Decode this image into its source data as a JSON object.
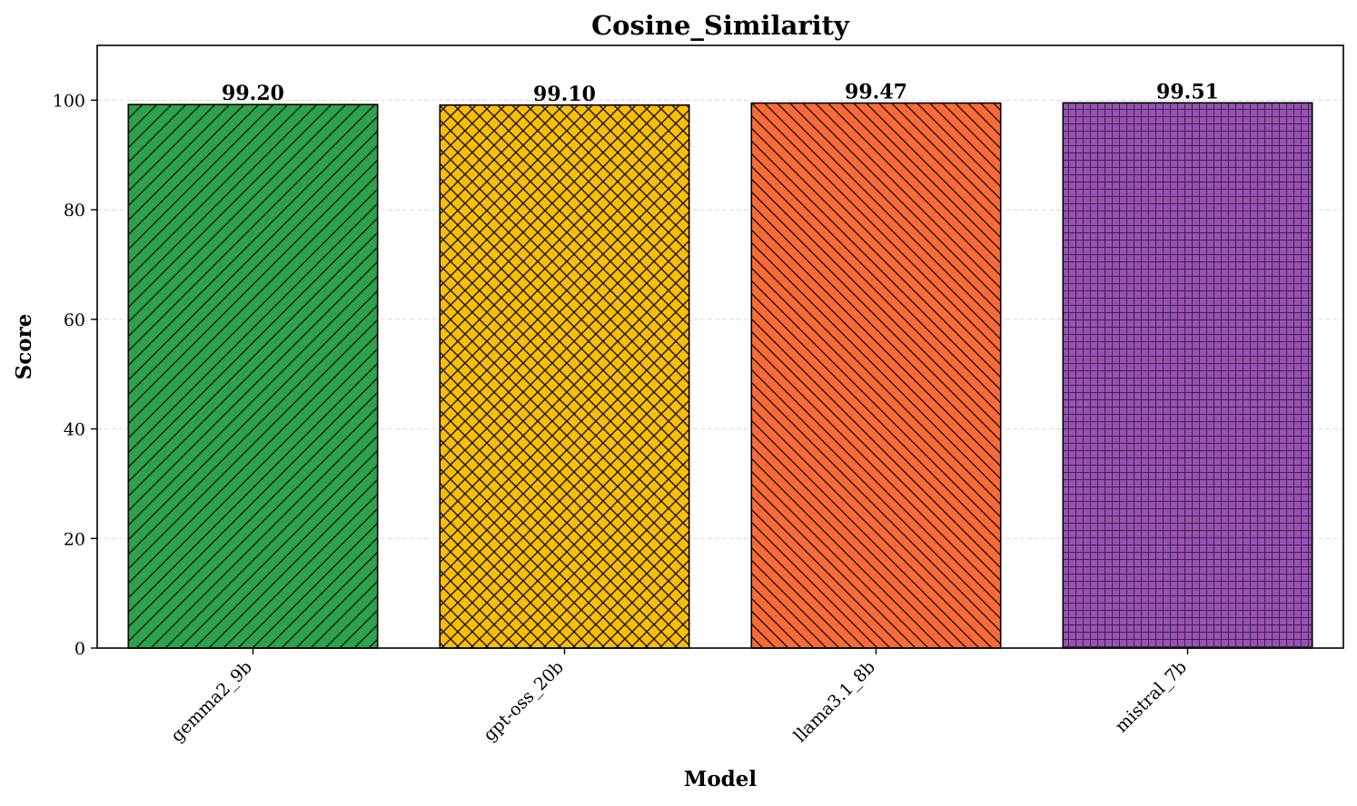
{
  "chart_data": {
    "type": "bar",
    "title": "Cosine_Similarity",
    "xlabel": "Model",
    "ylabel": "Score",
    "categories": [
      "gemma2_9b",
      "gpt-oss_20b",
      "llama3.1_8b",
      "mistral_7b"
    ],
    "values": [
      99.2,
      99.1,
      99.47,
      99.51
    ],
    "value_labels": [
      "99.20",
      "99.10",
      "99.47",
      "99.51"
    ],
    "colors": [
      "#2ca24b",
      "#fbbd05",
      "#fe6a35",
      "#9b4fb8"
    ],
    "hatches": [
      "diagonal-forward",
      "cross-diagonal",
      "diagonal-back",
      "grid"
    ],
    "ylim": [
      0,
      110
    ],
    "yticks": [
      0,
      20,
      40,
      60,
      80,
      100
    ],
    "ytick_labels": [
      "0",
      "20",
      "40",
      "60",
      "80",
      "100"
    ],
    "grid": true,
    "legend": "none"
  }
}
